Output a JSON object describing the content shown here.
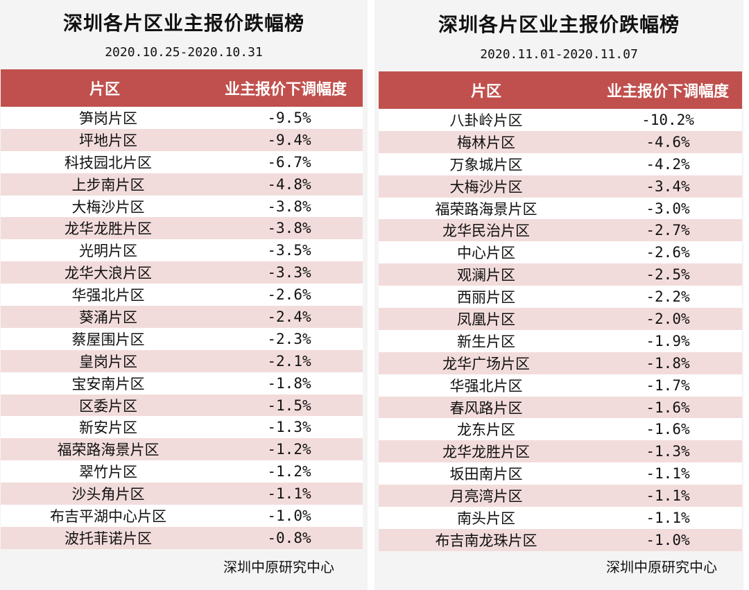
{
  "left": {
    "title": "深圳各片区业主报价跌幅榜",
    "date_range": "2020.10.25-2020.10.31",
    "header": {
      "col1": "片区",
      "col2": "业主报价下调幅度"
    },
    "rows": [
      {
        "name": "笋岗片区",
        "value": "-9.5%"
      },
      {
        "name": "坪地片区",
        "value": "-9.4%"
      },
      {
        "name": "科技园北片区",
        "value": "-6.7%"
      },
      {
        "name": "上步南片区",
        "value": "-4.8%"
      },
      {
        "name": "大梅沙片区",
        "value": "-3.8%"
      },
      {
        "name": "龙华龙胜片区",
        "value": "-3.8%"
      },
      {
        "name": "光明片区",
        "value": "-3.5%"
      },
      {
        "name": "龙华大浪片区",
        "value": "-3.3%"
      },
      {
        "name": "华强北片区",
        "value": "-2.6%"
      },
      {
        "name": "葵涌片区",
        "value": "-2.4%"
      },
      {
        "name": "蔡屋围片区",
        "value": "-2.3%"
      },
      {
        "name": "皇岗片区",
        "value": "-2.1%"
      },
      {
        "name": "宝安南片区",
        "value": "-1.8%"
      },
      {
        "name": "区委片区",
        "value": "-1.5%"
      },
      {
        "name": "新安片区",
        "value": "-1.3%"
      },
      {
        "name": "福荣路海景片区",
        "value": "-1.2%"
      },
      {
        "name": "翠竹片区",
        "value": "-1.2%"
      },
      {
        "name": "沙头角片区",
        "value": "-1.1%"
      },
      {
        "name": "布吉平湖中心片区",
        "value": "-1.0%"
      },
      {
        "name": "波托菲诺片区",
        "value": "-0.8%"
      }
    ],
    "source": "深圳中原研究中心"
  },
  "right": {
    "title": "深圳各片区业主报价跌幅榜",
    "date_range": "2020.11.01-2020.11.07",
    "header": {
      "col1": "片区",
      "col2": "业主报价下调幅度"
    },
    "rows": [
      {
        "name": "八卦岭片区",
        "value": "-10.2%"
      },
      {
        "name": "梅林片区",
        "value": "-4.6%"
      },
      {
        "name": "万象城片区",
        "value": "-4.2%"
      },
      {
        "name": "大梅沙片区",
        "value": "-3.4%"
      },
      {
        "name": "福荣路海景片区",
        "value": "-3.0%"
      },
      {
        "name": "龙华民治片区",
        "value": "-2.7%"
      },
      {
        "name": "中心片区",
        "value": "-2.6%"
      },
      {
        "name": "观澜片区",
        "value": "-2.5%"
      },
      {
        "name": "西丽片区",
        "value": "-2.2%"
      },
      {
        "name": "凤凰片区",
        "value": "-2.0%"
      },
      {
        "name": "新生片区",
        "value": "-1.9%"
      },
      {
        "name": "龙华广场片区",
        "value": "-1.8%"
      },
      {
        "name": "华强北片区",
        "value": "-1.7%"
      },
      {
        "name": "春风路片区",
        "value": "-1.6%"
      },
      {
        "name": "龙东片区",
        "value": "-1.6%"
      },
      {
        "name": "龙华龙胜片区",
        "value": "-1.3%"
      },
      {
        "name": "坂田南片区",
        "value": "-1.1%"
      },
      {
        "name": "月亮湾片区",
        "value": "-1.1%"
      },
      {
        "name": "南头片区",
        "value": "-1.1%"
      },
      {
        "name": "布吉南龙珠片区",
        "value": "-1.0%"
      }
    ],
    "source": "深圳中原研究中心"
  },
  "colors": {
    "header_bg": "#c0504d",
    "header_text": "#ffffff",
    "row_shade": "#f2dcdb",
    "row_plain": "#ffffff",
    "panel_bg": "#f4f4f4"
  }
}
